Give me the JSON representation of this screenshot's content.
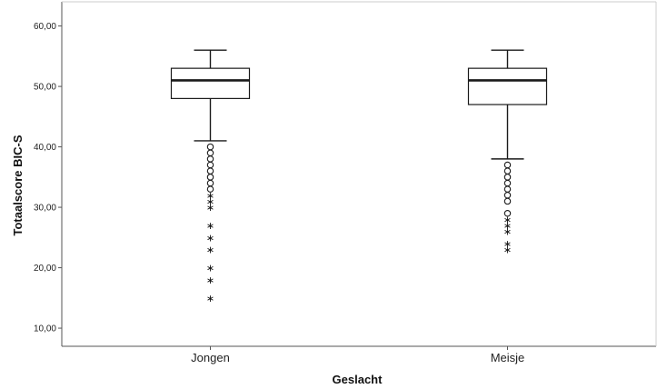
{
  "chart_data": {
    "type": "boxplot",
    "title": "",
    "xlabel": "Geslacht",
    "ylabel": "Totaalscore BIC-S",
    "ylim": [
      7,
      64
    ],
    "y_ticks": [
      10,
      20,
      30,
      40,
      50,
      60
    ],
    "y_tick_labels": [
      "10,00",
      "20,00",
      "30,00",
      "40,00",
      "50,00",
      "60,00"
    ],
    "grid": false,
    "categories": [
      "Jongen",
      "Meisje"
    ],
    "boxes": [
      {
        "category": "Jongen",
        "whisker_low": 41,
        "q1": 48,
        "median": 51,
        "q3": 53,
        "whisker_high": 56,
        "outliers_circle": [
          40,
          39,
          38,
          37,
          36,
          35,
          34,
          33
        ],
        "outliers_extreme": [
          32,
          31,
          30,
          27,
          25,
          23,
          20,
          18,
          15
        ]
      },
      {
        "category": "Meisje",
        "whisker_low": 38,
        "q1": 47,
        "median": 51,
        "q3": 53,
        "whisker_high": 56,
        "outliers_circle": [
          37,
          36,
          35,
          34,
          33,
          32,
          31,
          29
        ],
        "outliers_extreme": [
          28,
          27,
          26,
          24,
          23
        ]
      }
    ],
    "colors": {
      "box_fill": "#ffffff",
      "stroke": "#1a1a1a",
      "axis": "#555555"
    }
  }
}
